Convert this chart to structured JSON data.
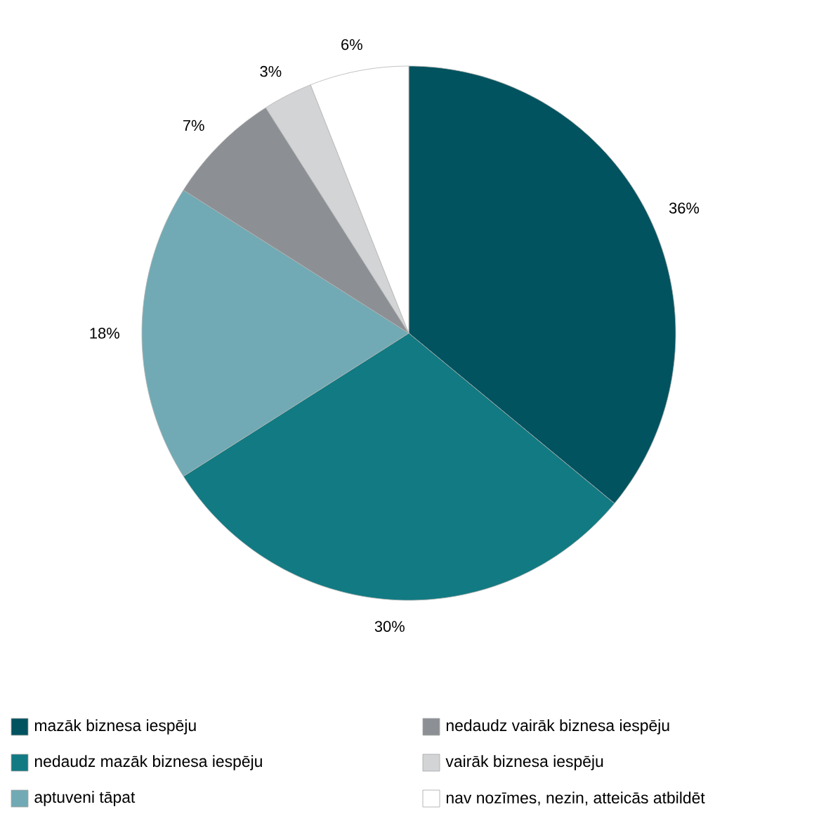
{
  "chart_data": {
    "type": "pie",
    "categories": [
      "mazāk biznesa iespēju",
      "nedaudz mazāk biznesa iespēju",
      "aptuveni tāpat",
      "nedaudz vairāk biznesa iespēju",
      "vairāk biznesa iespēju",
      "nav nozīmes, nezin, atteicās atbildēt"
    ],
    "values": [
      36,
      30,
      18,
      7,
      3,
      6
    ],
    "colors": [
      "#00535f",
      "#127a82",
      "#71aab4",
      "#8c9094",
      "#d3d4d6",
      "#ffffff"
    ],
    "value_labels": [
      "36%",
      "30%",
      "18%",
      "7%",
      "3%",
      "6%"
    ],
    "legend": "bottom"
  }
}
